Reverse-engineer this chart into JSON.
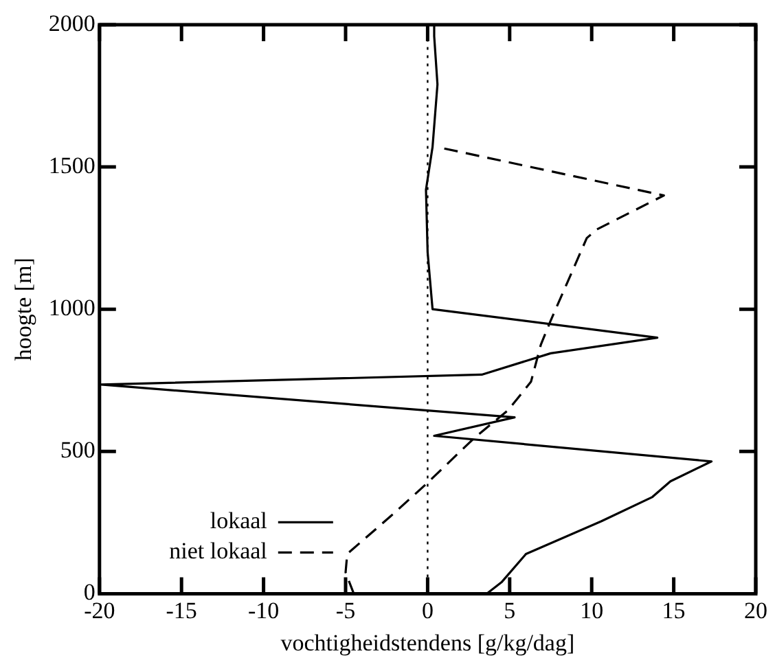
{
  "chart_data": {
    "type": "line",
    "xlabel": "vochtigheidstendens [g/kg/dag]",
    "ylabel": "hoogte [m]",
    "xlim": [
      -20,
      20
    ],
    "xticks": [
      -20,
      -15,
      -10,
      -5,
      0,
      5,
      10,
      15,
      20
    ],
    "ylim": [
      0,
      2000
    ],
    "yticks": [
      0,
      500,
      1000,
      1500,
      2000
    ],
    "grid": false,
    "legend": "bottom left",
    "marker": "none",
    "series": [
      {
        "name": "lokaal",
        "color": "#000000",
        "line_style": "solid",
        "x": [
          3.6,
          4.5,
          6.0,
          10.6,
          13.7,
          14.8,
          17.3,
          0.4,
          5.3,
          -19.9,
          3.3,
          7.5,
          14.0,
          0.3,
          0,
          -0.1,
          0.3,
          0.6,
          0.4,
          0.4
        ],
        "values": [
          0,
          40,
          140,
          255,
          340,
          395,
          465,
          555,
          620,
          735,
          770,
          845,
          900,
          1000,
          1200,
          1420,
          1570,
          1790,
          1960,
          2000
        ]
      },
      {
        "name": "niet lokaal",
        "color": "#000000",
        "line_style": "dashed",
        "x": [
          -4.5,
          -5.0,
          -4.9,
          -2.3,
          0,
          2.8,
          4.9,
          6.3,
          6.9,
          7.5,
          9.7,
          10.3,
          14.4,
          0.6
        ],
        "values": [
          0,
          75,
          140,
          270,
          390,
          545,
          645,
          745,
          875,
          960,
          1250,
          1280,
          1400,
          1570
        ]
      }
    ],
    "ref_lines": [
      {
        "axis": "x",
        "value": 0,
        "line_style": "dotted",
        "color": "#000000"
      }
    ]
  }
}
